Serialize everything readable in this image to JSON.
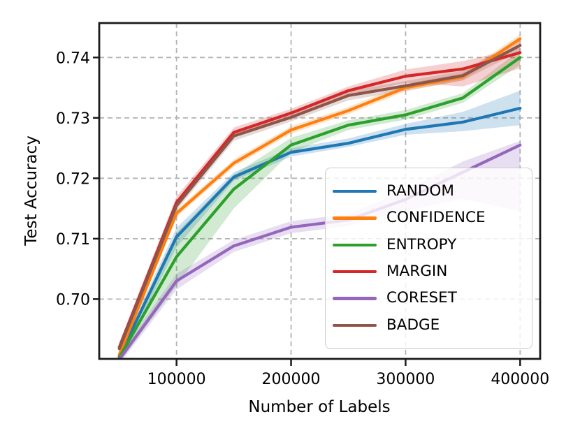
{
  "chart_data": {
    "type": "line",
    "title": "",
    "xlabel": "Number of Labels",
    "ylabel": "Test Accuracy",
    "grid": true,
    "grid_style": "dashed",
    "legend_position": "lower-right-inside",
    "xlim": [
      32500,
      417500
    ],
    "ylim": [
      0.6901,
      0.7457
    ],
    "xticks": [
      {
        "value": 100000,
        "label": "100000"
      },
      {
        "value": 200000,
        "label": "200000"
      },
      {
        "value": 300000,
        "label": "300000"
      },
      {
        "value": 400000,
        "label": "400000"
      }
    ],
    "yticks": [
      {
        "value": 0.7,
        "label": "0.70"
      },
      {
        "value": 0.71,
        "label": "0.71"
      },
      {
        "value": 0.72,
        "label": "0.72"
      },
      {
        "value": 0.73,
        "label": "0.73"
      },
      {
        "value": 0.74,
        "label": "0.74"
      }
    ],
    "x": [
      50000,
      100000,
      150000,
      200000,
      250000,
      300000,
      350000,
      400000
    ],
    "series": [
      {
        "name": "RANDOM",
        "color": "#1f77b4",
        "values": [
          0.6905,
          0.7103,
          0.7202,
          0.7243,
          0.7258,
          0.7281,
          0.7293,
          0.7316
        ],
        "band_lo": [
          0.6895,
          0.7086,
          0.7196,
          0.7236,
          0.7252,
          0.7272,
          0.7278,
          0.7288
        ],
        "band_hi": [
          0.6913,
          0.7118,
          0.721,
          0.725,
          0.7266,
          0.729,
          0.731,
          0.7345
        ]
      },
      {
        "name": "CONFIDENCE",
        "color": "#ff7f0e",
        "values": [
          0.6908,
          0.7142,
          0.7225,
          0.728,
          0.7312,
          0.735,
          0.7368,
          0.7431
        ],
        "band_lo": [
          0.6902,
          0.7136,
          0.7219,
          0.7274,
          0.7306,
          0.7344,
          0.7362,
          0.7424
        ],
        "band_hi": [
          0.6914,
          0.7148,
          0.7231,
          0.7286,
          0.7318,
          0.7356,
          0.7374,
          0.7438
        ]
      },
      {
        "name": "ENTROPY",
        "color": "#2ca02c",
        "values": [
          0.6903,
          0.707,
          0.7182,
          0.7255,
          0.7288,
          0.7305,
          0.7333,
          0.74
        ],
        "band_lo": [
          0.6895,
          0.7022,
          0.715,
          0.7243,
          0.728,
          0.7297,
          0.7325,
          0.7388
        ],
        "band_hi": [
          0.6911,
          0.711,
          0.7206,
          0.7267,
          0.7296,
          0.7313,
          0.7341,
          0.7412
        ]
      },
      {
        "name": "MARGIN",
        "color": "#d62728",
        "values": [
          0.692,
          0.716,
          0.7276,
          0.7308,
          0.7345,
          0.7369,
          0.7381,
          0.7408
        ],
        "band_lo": [
          0.6898,
          0.715,
          0.7268,
          0.7301,
          0.7338,
          0.7358,
          0.7352,
          0.7382
        ],
        "band_hi": [
          0.6928,
          0.717,
          0.7284,
          0.7315,
          0.7352,
          0.738,
          0.7394,
          0.7416
        ]
      },
      {
        "name": "CORESET",
        "color": "#9467bd",
        "values": [
          0.69,
          0.703,
          0.7088,
          0.7119,
          0.7131,
          0.7165,
          0.721,
          0.7255
        ],
        "band_lo": [
          0.6892,
          0.7016,
          0.7078,
          0.7109,
          0.7121,
          0.7146,
          0.7166,
          0.7145
        ],
        "band_hi": [
          0.6908,
          0.7042,
          0.7098,
          0.7129,
          0.7141,
          0.718,
          0.7228,
          0.7262
        ]
      },
      {
        "name": "BADGE",
        "color": "#8c564b",
        "values": [
          0.6918,
          0.7155,
          0.727,
          0.7301,
          0.7337,
          0.7353,
          0.737,
          0.742
        ],
        "band_lo": [
          0.6898,
          0.7147,
          0.7262,
          0.7294,
          0.7329,
          0.7345,
          0.7362,
          0.741
        ],
        "band_hi": [
          0.6926,
          0.7163,
          0.7278,
          0.7308,
          0.7345,
          0.7361,
          0.7378,
          0.743
        ]
      }
    ],
    "style": {
      "grid_color": "#b4b4b4",
      "spine_color": "#1b1b1b",
      "band_opacity": 0.22,
      "line_width": 4.2
    }
  }
}
